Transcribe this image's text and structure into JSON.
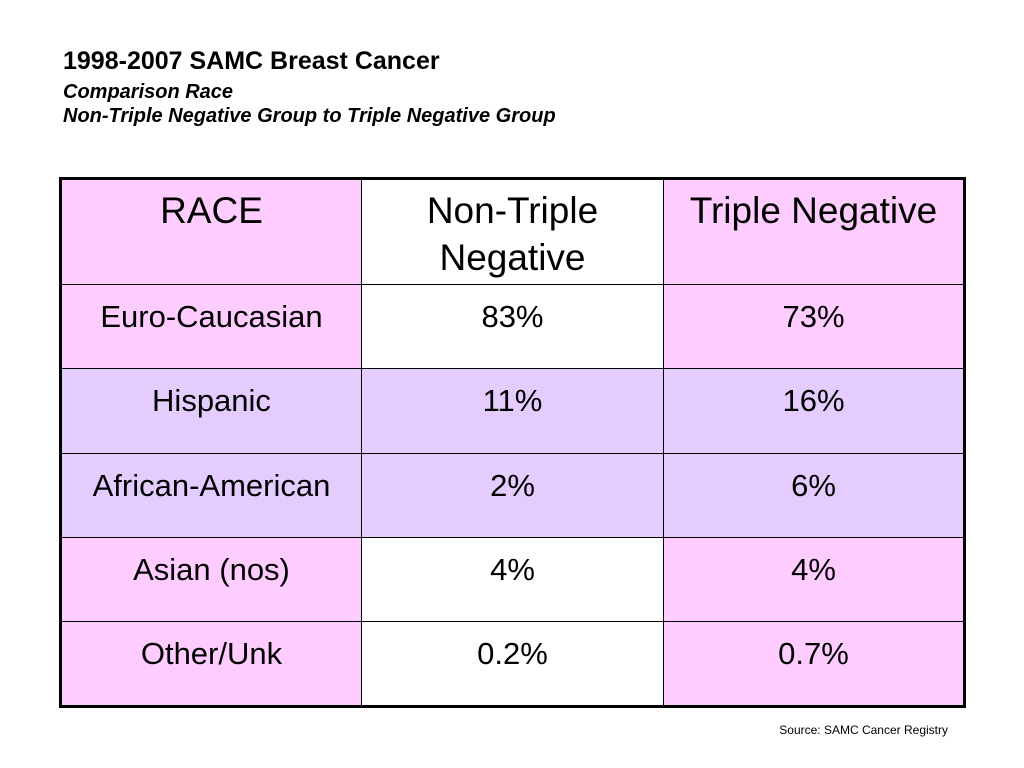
{
  "title": {
    "line1": "1998-2007 SAMC Breast Cancer",
    "line2": "Comparison Race",
    "line3": "Non-Triple Negative Group to Triple Negative Group"
  },
  "colors": {
    "pink": "#ffccff",
    "lavender": "#e5ccff",
    "white": "#ffffff"
  },
  "table": {
    "headers": [
      "RACE",
      "Non-Triple Negative",
      "Triple Negative"
    ],
    "rows": [
      {
        "race": "Euro-Caucasian",
        "non_triple_negative": "83%",
        "triple_negative": "73%"
      },
      {
        "race": "Hispanic",
        "non_triple_negative": "11%",
        "triple_negative": "16%"
      },
      {
        "race": "African-American",
        "non_triple_negative": "2%",
        "triple_negative": "6%"
      },
      {
        "race": "Asian (nos)",
        "non_triple_negative": "4%",
        "triple_negative": "4%"
      },
      {
        "race": "Other/Unk",
        "non_triple_negative": "0.2%",
        "triple_negative": "0.7%"
      }
    ]
  },
  "source": "Source: SAMC Cancer Registry"
}
